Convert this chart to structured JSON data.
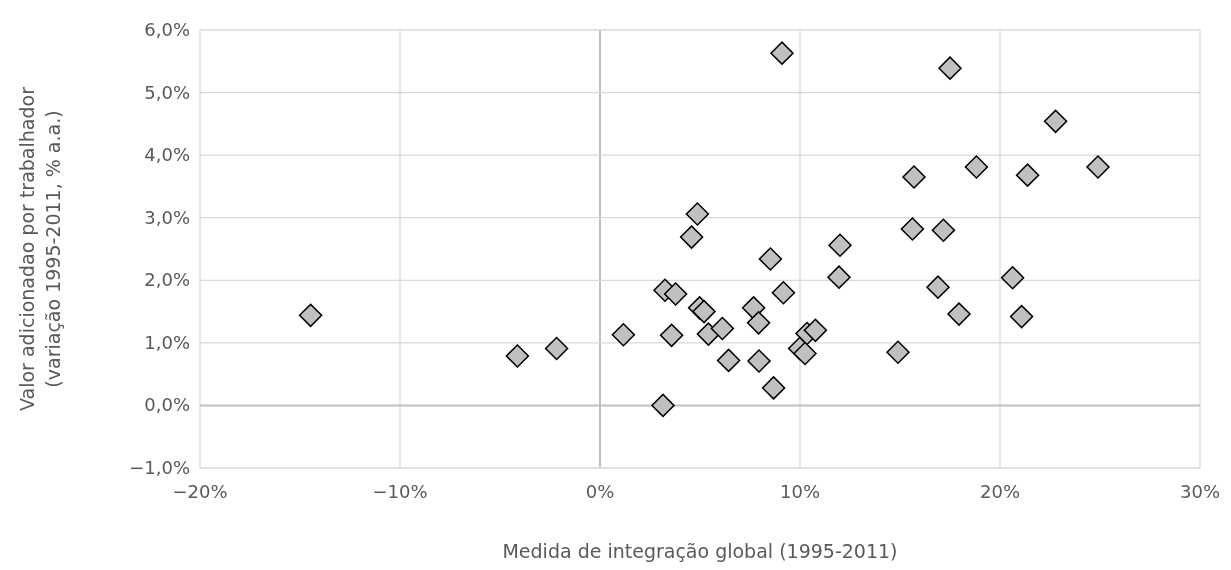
{
  "chart_data": {
    "type": "scatter",
    "xlabel": "Medida de integração global (1995-2011)",
    "ylabel": "Valor adicionadao por trabalhador\n(variação 1995-2011, % a.a.)",
    "xlim": [
      -20,
      30
    ],
    "ylim": [
      -1,
      6
    ],
    "xticks": [
      {
        "value": -20,
        "label": "−20%"
      },
      {
        "value": -10,
        "label": "−10%"
      },
      {
        "value": 0,
        "label": "0%"
      },
      {
        "value": 10,
        "label": "10%"
      },
      {
        "value": 20,
        "label": "20%"
      },
      {
        "value": 30,
        "label": "30%"
      }
    ],
    "yticks": [
      {
        "value": -1,
        "label": "−1,0%"
      },
      {
        "value": 0,
        "label": "0,0%"
      },
      {
        "value": 1,
        "label": "1,0%"
      },
      {
        "value": 2,
        "label": "2,0%"
      },
      {
        "value": 3,
        "label": "3,0%"
      },
      {
        "value": 4,
        "label": "4,0%"
      },
      {
        "value": 5,
        "label": "5,0%"
      },
      {
        "value": 6,
        "label": "6,0%"
      }
    ],
    "grid": true,
    "marker": "diamond",
    "series": [
      {
        "color": "#c0c0c0",
        "x": [
          9.1,
          4.87,
          4.58,
          8.52,
          12.0,
          11.95,
          3.25,
          3.78,
          9.17,
          4.98,
          5.2,
          7.68,
          7.93,
          1.17,
          3.58,
          5.42,
          6.12,
          10.35,
          10.77,
          9.98,
          10.25,
          6.43,
          7.95,
          8.68,
          3.15,
          14.9,
          -14.47,
          -4.13,
          -2.17,
          17.5,
          22.78,
          15.7,
          18.82,
          21.38,
          24.9,
          15.62,
          17.17,
          16.9,
          17.95,
          20.63,
          21.08
        ],
        "values": [
          5.63,
          3.06,
          2.69,
          2.34,
          2.56,
          2.05,
          1.84,
          1.78,
          1.8,
          1.56,
          1.5,
          1.56,
          1.32,
          1.13,
          1.12,
          1.14,
          1.23,
          1.15,
          1.2,
          0.91,
          0.83,
          0.72,
          0.71,
          0.28,
          0.0,
          0.85,
          1.44,
          0.79,
          0.91,
          5.39,
          4.54,
          3.65,
          3.81,
          3.68,
          3.81,
          2.82,
          2.8,
          1.89,
          1.46,
          2.04,
          1.42
        ]
      }
    ]
  }
}
